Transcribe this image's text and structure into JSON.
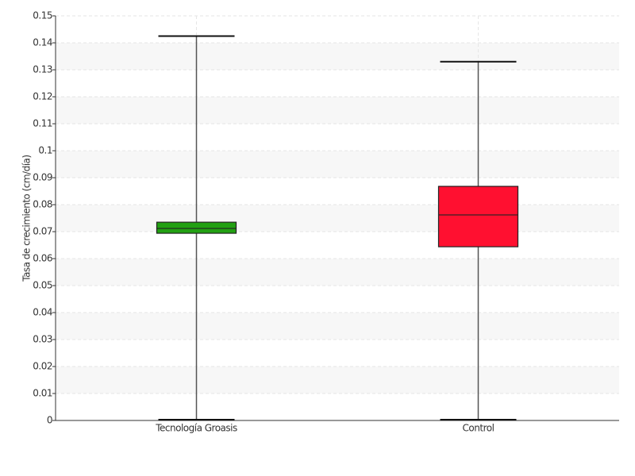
{
  "chart_data": {
    "type": "box",
    "y_label": "Tasa de crecimiento (cm/día)",
    "categories": [
      "Tecnología Groasis",
      "Control"
    ],
    "min": [
      0,
      0
    ],
    "q1": [
      0.0694,
      0.0644
    ],
    "median": [
      0.0712,
      0.0762
    ],
    "q3": [
      0.0735,
      0.0868
    ],
    "max": [
      0.1425,
      0.133
    ],
    "colors": [
      "#22a012",
      "#ff1030"
    ],
    "ylim": [
      0,
      0.15
    ],
    "yticks": [
      0,
      0.01,
      0.02,
      0.03,
      0.04,
      0.05,
      0.06,
      0.07,
      0.08,
      0.09,
      0.1,
      0.11,
      0.12,
      0.13,
      0.14,
      0.15
    ],
    "grid": true
  }
}
